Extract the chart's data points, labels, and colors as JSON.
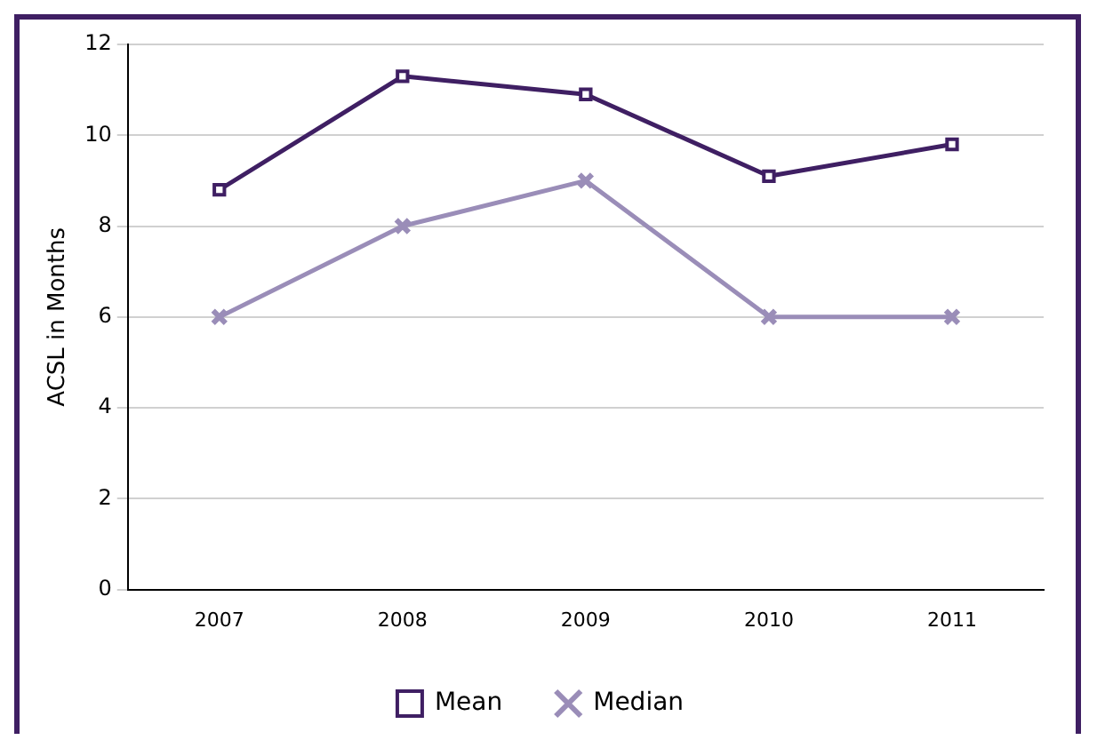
{
  "chart_data": {
    "type": "line",
    "ylabel": "ACSL in Months",
    "categories": [
      "2007",
      "2008",
      "2009",
      "2010",
      "2011"
    ],
    "series": [
      {
        "name": "Mean",
        "color": "#3f1f63",
        "values": [
          8.8,
          11.3,
          10.9,
          9.1,
          9.8
        ],
        "marker": "square"
      },
      {
        "name": "Median",
        "color": "#9a8db8",
        "values": [
          6,
          8,
          9,
          6,
          6
        ],
        "marker": "cross"
      }
    ],
    "ylim": [
      0,
      12
    ],
    "yticks": [
      0,
      2,
      4,
      6,
      8,
      10,
      12
    ],
    "grid": "y",
    "legend": "bottom",
    "line_style": "solid"
  }
}
